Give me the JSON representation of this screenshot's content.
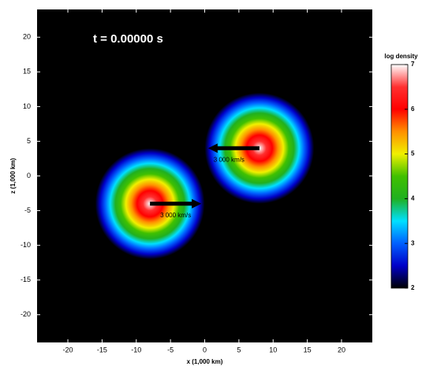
{
  "chart_data": {
    "type": "density-map",
    "annotation": "t = 0.00000 s",
    "xlabel": "x (1,000 km)",
    "ylabel": "z (1,000 km)",
    "xlim": [
      -24.5,
      24.5
    ],
    "xticks": [
      -20,
      -15,
      -10,
      -5,
      0,
      5,
      10,
      15,
      20
    ],
    "ylim": [
      -24,
      24
    ],
    "yticks": [
      -20,
      -15,
      -10,
      -5,
      0,
      5,
      10,
      15,
      20
    ],
    "background": "#000000",
    "stars": [
      {
        "x": -8,
        "z": -4,
        "radius": 8
      },
      {
        "x": 8,
        "z": 4,
        "radius": 8
      }
    ],
    "arrows": [
      {
        "x0": -8,
        "x1": -0.5,
        "z": -4,
        "label": "3 000 km/s"
      },
      {
        "x0": 8,
        "x1": 0.5,
        "z": 4,
        "label": "3 000 km/s"
      }
    ],
    "colorbar_label": "log density",
    "colorbar_lim": [
      2,
      7
    ],
    "colorbar_ticks": [
      2,
      3,
      4,
      5,
      6,
      7
    ],
    "colormap": [
      "#000000",
      "#0000c8",
      "#0060ff",
      "#00e0ff",
      "#20b020",
      "#40c000",
      "#f0f000",
      "#ff9000",
      "#ff0000",
      "#ff3030",
      "#ffffff"
    ]
  }
}
